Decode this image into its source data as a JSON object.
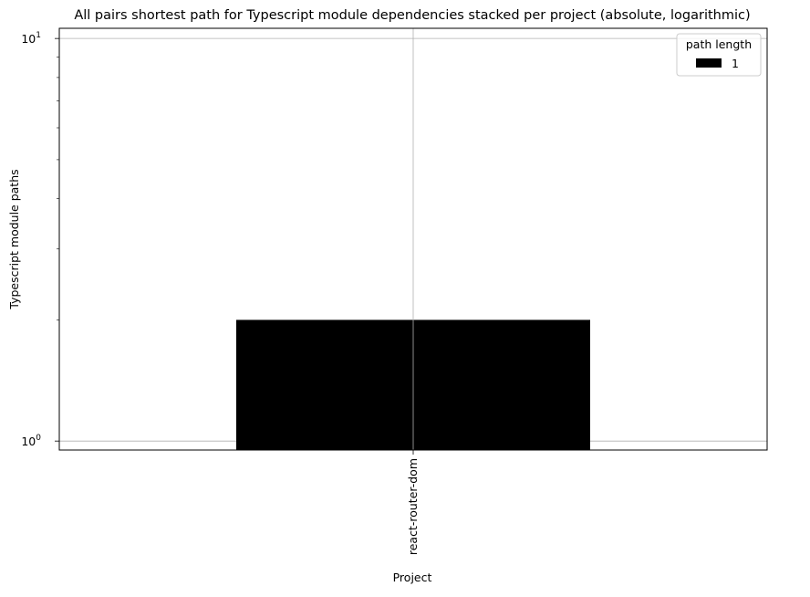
{
  "chart_data": {
    "type": "bar",
    "stacked": true,
    "title": "All pairs shortest path for Typescript module dependencies stacked per project (absolute, logarithmic)",
    "xlabel": "Project",
    "ylabel": "Typescript module paths",
    "categories": [
      "react-router-dom"
    ],
    "series": [
      {
        "name": "1",
        "values": [
          2
        ],
        "color": "#000000"
      }
    ],
    "legend": {
      "title": "path length",
      "position": "top-right"
    },
    "yscale": "log",
    "ylim": [
      0.95,
      10.6
    ],
    "yticks": [
      {
        "value": 1,
        "base": "10",
        "exp": "0"
      },
      {
        "value": 10,
        "base": "10",
        "exp": "1"
      }
    ],
    "grid": true
  }
}
